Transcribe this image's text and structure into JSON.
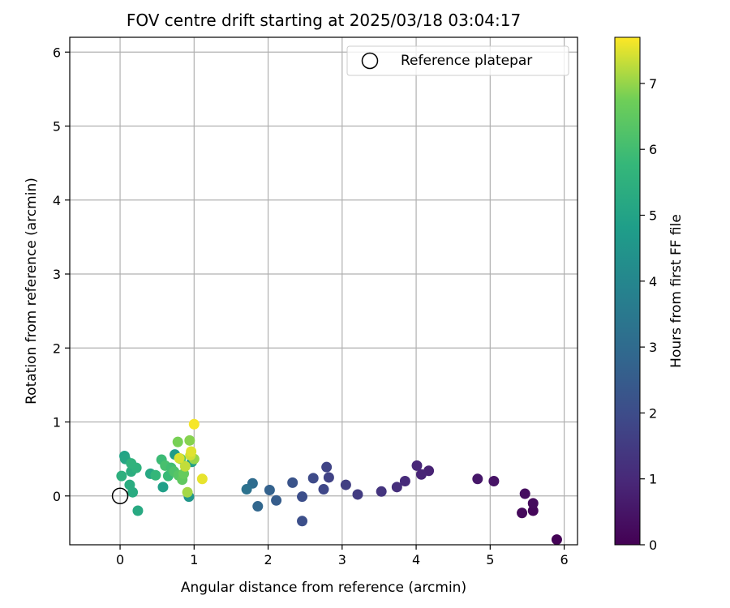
{
  "chart_data": {
    "type": "scatter",
    "title": "FOV centre drift starting at 2025/03/18 03:04:17",
    "xlabel": "Angular distance from reference (arcmin)",
    "ylabel": "Rotation from reference (arcmin)",
    "xlim": [
      -0.68,
      6.18
    ],
    "ylim": [
      -0.66,
      6.2
    ],
    "xticks": [
      "0",
      "1",
      "2",
      "3",
      "4",
      "5",
      "6"
    ],
    "yticks": [
      "0",
      "1",
      "2",
      "3",
      "4",
      "5",
      "6"
    ],
    "grid": true,
    "legend": {
      "placement": "top-right",
      "entries": [
        "Reference platepar"
      ]
    },
    "reference_point": {
      "x": 0,
      "y": 0,
      "label": "Reference platepar"
    },
    "colorbar": {
      "label": "Hours from first FF file",
      "colormap": "viridis",
      "range": [
        0,
        7.7
      ],
      "ticks": [
        "0",
        "1",
        "2",
        "3",
        "4",
        "5",
        "6",
        "7"
      ]
    },
    "points": [
      {
        "x": 5.9,
        "y": -0.59,
        "c": 0.05
      },
      {
        "x": 5.58,
        "y": -0.2,
        "c": 0.15
      },
      {
        "x": 5.58,
        "y": -0.1,
        "c": 0.25
      },
      {
        "x": 5.43,
        "y": -0.23,
        "c": 0.2
      },
      {
        "x": 5.47,
        "y": 0.03,
        "c": 0.3
      },
      {
        "x": 5.05,
        "y": 0.2,
        "c": 0.45
      },
      {
        "x": 4.83,
        "y": 0.23,
        "c": 0.55
      },
      {
        "x": 4.17,
        "y": 0.34,
        "c": 0.85
      },
      {
        "x": 4.07,
        "y": 0.29,
        "c": 0.9
      },
      {
        "x": 4.01,
        "y": 0.41,
        "c": 0.95
      },
      {
        "x": 3.85,
        "y": 0.2,
        "c": 1.05
      },
      {
        "x": 3.74,
        "y": 0.12,
        "c": 1.15
      },
      {
        "x": 3.53,
        "y": 0.06,
        "c": 1.3
      },
      {
        "x": 3.21,
        "y": 0.02,
        "c": 1.5
      },
      {
        "x": 3.05,
        "y": 0.15,
        "c": 1.6
      },
      {
        "x": 2.82,
        "y": 0.25,
        "c": 1.7
      },
      {
        "x": 2.79,
        "y": 0.39,
        "c": 1.75
      },
      {
        "x": 2.75,
        "y": 0.09,
        "c": 1.85
      },
      {
        "x": 2.61,
        "y": 0.24,
        "c": 1.95
      },
      {
        "x": 2.46,
        "y": -0.01,
        "c": 2.05
      },
      {
        "x": 2.46,
        "y": -0.34,
        "c": 2.1
      },
      {
        "x": 2.33,
        "y": 0.18,
        "c": 2.2
      },
      {
        "x": 2.11,
        "y": -0.06,
        "c": 2.55
      },
      {
        "x": 2.02,
        "y": 0.08,
        "c": 2.7
      },
      {
        "x": 1.86,
        "y": -0.14,
        "c": 2.85
      },
      {
        "x": 1.79,
        "y": 0.17,
        "c": 3.05
      },
      {
        "x": 1.71,
        "y": 0.09,
        "c": 3.25
      },
      {
        "x": 0.93,
        "y": -0.01,
        "c": 4.55
      },
      {
        "x": 0.58,
        "y": 0.12,
        "c": 4.9
      },
      {
        "x": 0.74,
        "y": 0.56,
        "c": 4.75
      },
      {
        "x": 0.06,
        "y": 0.54,
        "c": 5.0
      },
      {
        "x": 0.07,
        "y": 0.5,
        "c": 5.1
      },
      {
        "x": 0.24,
        "y": -0.2,
        "c": 5.25
      },
      {
        "x": 0.17,
        "y": 0.05,
        "c": 5.3
      },
      {
        "x": 0.13,
        "y": 0.15,
        "c": 5.35
      },
      {
        "x": 0.02,
        "y": 0.27,
        "c": 5.45
      },
      {
        "x": 0.15,
        "y": 0.33,
        "c": 5.4
      },
      {
        "x": 0.22,
        "y": 0.38,
        "c": 5.55
      },
      {
        "x": 0.15,
        "y": 0.44,
        "c": 5.6
      },
      {
        "x": 0.41,
        "y": 0.3,
        "c": 5.2
      },
      {
        "x": 0.48,
        "y": 0.28,
        "c": 5.75
      },
      {
        "x": 0.56,
        "y": 0.49,
        "c": 5.9
      },
      {
        "x": 0.61,
        "y": 0.41,
        "c": 6.1
      },
      {
        "x": 0.65,
        "y": 0.27,
        "c": 5.85
      },
      {
        "x": 0.69,
        "y": 0.38,
        "c": 6.0
      },
      {
        "x": 0.73,
        "y": 0.33,
        "c": 6.2
      },
      {
        "x": 0.79,
        "y": 0.28,
        "c": 6.35
      },
      {
        "x": 0.84,
        "y": 0.22,
        "c": 6.5
      },
      {
        "x": 0.82,
        "y": 0.5,
        "c": 6.4
      },
      {
        "x": 0.86,
        "y": 0.3,
        "c": 6.6
      },
      {
        "x": 0.78,
        "y": 0.73,
        "c": 6.8
      },
      {
        "x": 0.94,
        "y": 0.75,
        "c": 6.9
      },
      {
        "x": 0.97,
        "y": 0.46,
        "c": 4.9
      },
      {
        "x": 0.91,
        "y": 0.05,
        "c": 7.1
      },
      {
        "x": 1.0,
        "y": 0.5,
        "c": 7.0
      },
      {
        "x": 0.88,
        "y": 0.4,
        "c": 7.3
      },
      {
        "x": 0.95,
        "y": 0.55,
        "c": 7.4
      },
      {
        "x": 0.96,
        "y": 0.6,
        "c": 7.5
      },
      {
        "x": 0.8,
        "y": 0.51,
        "c": 7.45
      },
      {
        "x": 1.0,
        "y": 0.97,
        "c": 7.65
      },
      {
        "x": 1.11,
        "y": 0.23,
        "c": 7.55
      }
    ]
  }
}
